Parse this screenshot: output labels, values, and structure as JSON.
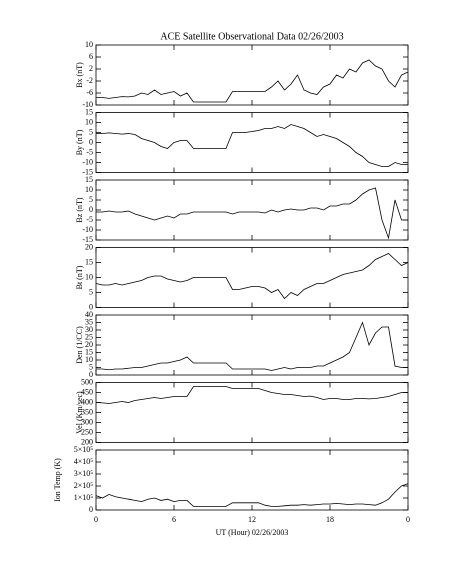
{
  "chart_data": [
    {
      "type": "line",
      "title": "ACE Satellite Observational Data   02/26/2003",
      "ylabel": "Bx (nT)",
      "ylim": [
        -10,
        10
      ],
      "yticks": [
        -10,
        -6,
        -2,
        2,
        6,
        10
      ],
      "x": [
        0,
        0.5,
        1,
        1.5,
        2,
        2.5,
        3,
        3.5,
        4,
        4.5,
        5,
        5.5,
        6,
        6.5,
        7,
        7.5,
        8,
        8.5,
        9,
        9.5,
        10,
        10.5,
        11,
        11.5,
        12,
        12.5,
        13,
        13.5,
        14,
        14.5,
        15,
        15.5,
        16,
        16.5,
        17,
        17.5,
        18,
        18.5,
        19,
        19.5,
        20,
        20.5,
        21,
        21.5,
        22,
        22.5,
        23,
        23.5,
        24
      ],
      "series": [
        {
          "color": "#000000",
          "values": [
            -7.5,
            -7.5,
            -7.8,
            -7.5,
            -7.2,
            -7.3,
            -7,
            -6,
            -6.5,
            -5,
            -6.5,
            -6,
            -5.5,
            -7,
            -6,
            -9,
            -9,
            -9,
            -9,
            -9,
            -9,
            -5.5,
            -5.5,
            -5.5,
            -5.5,
            -5.5,
            -5.5,
            -4,
            -2,
            -5,
            -3,
            0,
            -5,
            -6,
            -6.5,
            -4,
            -3,
            0,
            -1,
            2,
            1,
            4,
            5,
            3,
            2,
            -2,
            -4,
            0,
            1
          ]
        }
      ]
    },
    {
      "type": "line",
      "ylabel": "By (nT)",
      "ylim": [
        -15,
        15
      ],
      "yticks": [
        -15,
        -10,
        -5,
        0,
        5,
        10,
        15
      ],
      "x": [
        0,
        0.5,
        1,
        1.5,
        2,
        2.5,
        3,
        3.5,
        4,
        4.5,
        5,
        5.5,
        6,
        6.5,
        7,
        7.5,
        8,
        8.5,
        9,
        9.5,
        10,
        10.5,
        11,
        11.5,
        12,
        12.5,
        13,
        13.5,
        14,
        14.5,
        15,
        15.5,
        16,
        16.5,
        17,
        17.5,
        18,
        18.5,
        19,
        19.5,
        20,
        20.5,
        21,
        21.5,
        22,
        22.5,
        23,
        23.5,
        24
      ],
      "series": [
        {
          "color": "#000000",
          "values": [
            4.5,
            4.5,
            4.8,
            4.5,
            4.2,
            4.5,
            4,
            2,
            1,
            0,
            -2,
            -3,
            0,
            1,
            1,
            -3,
            -3,
            -3,
            -3,
            -3,
            -3,
            5,
            5,
            5,
            5.5,
            6,
            7,
            7,
            8,
            7,
            9,
            8,
            7,
            5,
            3,
            4,
            3,
            2,
            0,
            -2,
            -5,
            -7,
            -10,
            -11,
            -12,
            -12,
            -10,
            -11,
            -11
          ]
        }
      ]
    },
    {
      "type": "line",
      "ylabel": "Bz (nT)",
      "ylim": [
        -15,
        15
      ],
      "yticks": [
        -15,
        -10,
        -5,
        0,
        5,
        10,
        15
      ],
      "x": [
        0,
        0.5,
        1,
        1.5,
        2,
        2.5,
        3,
        3.5,
        4,
        4.5,
        5,
        5.5,
        6,
        6.5,
        7,
        7.5,
        8,
        8.5,
        9,
        9.5,
        10,
        10.5,
        11,
        11.5,
        12,
        12.5,
        13,
        13.5,
        14,
        14.5,
        15,
        15.5,
        16,
        16.5,
        17,
        17.5,
        18,
        18.5,
        19,
        19.5,
        20,
        20.5,
        21,
        21.5,
        22,
        22.5,
        23,
        23.5,
        24
      ],
      "series": [
        {
          "color": "#000000",
          "values": [
            -1,
            -1,
            -0.5,
            -1,
            -1,
            -0.5,
            -2,
            -3,
            -4,
            -5,
            -4,
            -3,
            -4,
            -2,
            -2,
            -1,
            -1,
            -1,
            -1,
            -1,
            -1,
            -2,
            -1,
            -1,
            -1,
            -1,
            -1.5,
            0,
            -1,
            0,
            0.5,
            0,
            0,
            1,
            1,
            0,
            2,
            2,
            3,
            3,
            5,
            8,
            10,
            11,
            -5,
            -14,
            5,
            -5,
            -5
          ]
        }
      ]
    },
    {
      "type": "line",
      "ylabel": "Bt (nT)",
      "ylim": [
        0,
        20
      ],
      "yticks": [
        0,
        5,
        10,
        15,
        20
      ],
      "x": [
        0,
        0.5,
        1,
        1.5,
        2,
        2.5,
        3,
        3.5,
        4,
        4.5,
        5,
        5.5,
        6,
        6.5,
        7,
        7.5,
        8,
        8.5,
        9,
        9.5,
        10,
        10.5,
        11,
        11.5,
        12,
        12.5,
        13,
        13.5,
        14,
        14.5,
        15,
        15.5,
        16,
        16.5,
        17,
        17.5,
        18,
        18.5,
        19,
        19.5,
        20,
        20.5,
        21,
        21.5,
        22,
        22.5,
        23,
        23.5,
        24
      ],
      "series": [
        {
          "color": "#000000",
          "values": [
            8,
            7.5,
            7.5,
            8,
            7.5,
            8,
            8.5,
            9,
            10,
            10.5,
            10.5,
            9.5,
            9,
            8.5,
            9,
            10,
            10,
            10,
            10,
            10,
            10,
            6,
            6,
            6.5,
            7,
            7,
            6.5,
            5,
            6,
            3,
            5,
            4,
            6,
            7,
            8,
            8,
            9,
            10,
            11,
            11.5,
            12,
            12.5,
            14,
            16,
            17,
            18,
            16,
            14,
            15
          ]
        }
      ]
    },
    {
      "type": "line",
      "ylabel": "Den (1/CC)",
      "ylim": [
        0,
        40
      ],
      "yticks": [
        0,
        5,
        10,
        15,
        20,
        25,
        30,
        35,
        40
      ],
      "x": [
        0,
        0.5,
        1,
        1.5,
        2,
        2.5,
        3,
        3.5,
        4,
        4.5,
        5,
        5.5,
        6,
        6.5,
        7,
        7.5,
        8,
        8.5,
        9,
        9.5,
        10,
        10.5,
        11,
        11.5,
        12,
        12.5,
        13,
        13.5,
        14,
        14.5,
        15,
        15.5,
        16,
        16.5,
        17,
        17.5,
        18,
        18.5,
        19,
        19.5,
        20,
        20.5,
        21,
        21.5,
        22,
        22.5,
        23,
        23.5,
        24
      ],
      "series": [
        {
          "color": "#000000",
          "values": [
            4,
            4,
            3.5,
            4,
            4,
            4.5,
            5,
            5,
            6,
            7,
            8,
            8,
            9,
            10,
            12,
            8,
            8,
            8,
            8,
            8,
            8,
            4,
            4,
            4,
            4,
            4,
            4,
            3,
            4,
            5,
            4,
            5,
            5,
            5,
            6,
            6,
            8,
            10,
            12,
            15,
            25,
            35,
            20,
            28,
            32,
            32,
            6,
            5,
            5
          ]
        }
      ]
    },
    {
      "type": "line",
      "ylabel": "Vel (Km/sec)",
      "ylim": [
        200,
        500
      ],
      "yticks": [
        200,
        250,
        300,
        350,
        400,
        450,
        500
      ],
      "x": [
        0,
        0.5,
        1,
        1.5,
        2,
        2.5,
        3,
        3.5,
        4,
        4.5,
        5,
        5.5,
        6,
        6.5,
        7,
        7.5,
        8,
        8.5,
        9,
        9.5,
        10,
        10.5,
        11,
        11.5,
        12,
        12.5,
        13,
        13.5,
        14,
        14.5,
        15,
        15.5,
        16,
        16.5,
        17,
        17.5,
        18,
        18.5,
        19,
        19.5,
        20,
        20.5,
        21,
        21.5,
        22,
        22.5,
        23,
        23.5,
        24
      ],
      "series": [
        {
          "color": "#000000",
          "values": [
            400,
            398,
            395,
            400,
            405,
            400,
            410,
            415,
            420,
            425,
            420,
            425,
            430,
            430,
            430,
            480,
            480,
            480,
            480,
            480,
            480,
            470,
            470,
            470,
            470,
            470,
            460,
            450,
            445,
            440,
            440,
            435,
            430,
            432,
            425,
            415,
            420,
            420,
            415,
            415,
            420,
            420,
            418,
            420,
            425,
            430,
            440,
            450,
            450
          ]
        }
      ]
    },
    {
      "type": "line",
      "ylabel": "Ion Temp (K)",
      "xlabel": "UT (Hour)  02/26/2003",
      "xlim": [
        0,
        24
      ],
      "xticks": [
        0,
        6,
        12,
        18,
        {
          "value": 24,
          "label": "0"
        }
      ],
      "ylim": [
        0,
        500000
      ],
      "yticks": [
        0,
        {
          "value": 100000,
          "label": "1×10⁵"
        },
        {
          "value": 200000,
          "label": "2×10⁵"
        },
        {
          "value": 300000,
          "label": "3×10⁵"
        },
        {
          "value": 400000,
          "label": "4×10⁵"
        },
        {
          "value": 500000,
          "label": "5×10⁵"
        }
      ],
      "x": [
        0,
        0.5,
        1,
        1.5,
        2,
        2.5,
        3,
        3.5,
        4,
        4.5,
        5,
        5.5,
        6,
        6.5,
        7,
        7.5,
        8,
        8.5,
        9,
        9.5,
        10,
        10.5,
        11,
        11.5,
        12,
        12.5,
        13,
        13.5,
        14,
        14.5,
        15,
        15.5,
        16,
        16.5,
        17,
        17.5,
        18,
        18.5,
        19,
        19.5,
        20,
        20.5,
        21,
        21.5,
        22,
        22.5,
        23,
        23.5,
        24
      ],
      "series": [
        {
          "color": "#000000",
          "values": [
            120000,
            100000,
            130000,
            110000,
            100000,
            90000,
            80000,
            70000,
            90000,
            100000,
            80000,
            90000,
            70000,
            80000,
            80000,
            30000,
            30000,
            30000,
            30000,
            30000,
            30000,
            60000,
            60000,
            60000,
            60000,
            60000,
            40000,
            30000,
            30000,
            35000,
            40000,
            40000,
            45000,
            40000,
            45000,
            50000,
            50000,
            55000,
            50000,
            45000,
            50000,
            50000,
            45000,
            40000,
            60000,
            90000,
            150000,
            200000,
            220000
          ]
        }
      ]
    }
  ]
}
